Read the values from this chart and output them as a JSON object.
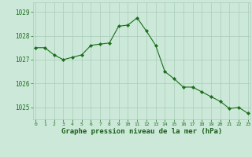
{
  "x": [
    0,
    1,
    2,
    3,
    4,
    5,
    6,
    7,
    8,
    9,
    10,
    11,
    12,
    13,
    14,
    15,
    16,
    17,
    18,
    19,
    20,
    21,
    22,
    23
  ],
  "y": [
    1027.5,
    1027.5,
    1027.2,
    1027.0,
    1027.1,
    1027.2,
    1027.6,
    1027.65,
    1027.7,
    1028.4,
    1028.45,
    1028.75,
    1028.2,
    1027.6,
    1026.5,
    1026.2,
    1025.85,
    1025.85,
    1025.65,
    1025.45,
    1025.25,
    1024.95,
    1025.0,
    1024.75
  ],
  "line_color": "#1a6e1a",
  "marker": "D",
  "marker_size": 2.2,
  "bg_color": "#cce8d8",
  "grid_color": "#aaccbb",
  "xlabel": "Graphe pression niveau de la mer (hPa)",
  "xlabel_color": "#1a5e1a",
  "tick_label_color": "#1a6e1a",
  "bottom_bar_color": "#2a7a2a",
  "ylim": [
    1024.5,
    1029.4
  ],
  "yticks": [
    1025,
    1026,
    1027,
    1028,
    1029
  ],
  "xticks": [
    0,
    1,
    2,
    3,
    4,
    5,
    6,
    7,
    8,
    9,
    10,
    11,
    12,
    13,
    14,
    15,
    16,
    17,
    18,
    19,
    20,
    21,
    22,
    23
  ]
}
